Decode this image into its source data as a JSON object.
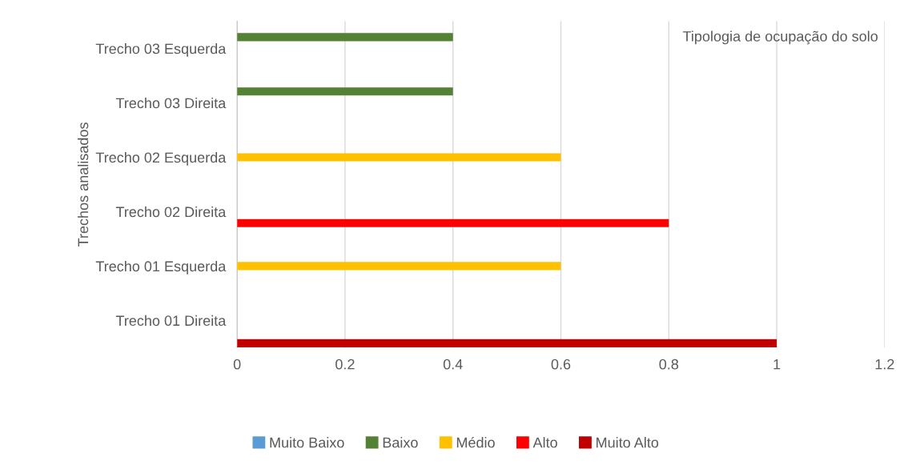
{
  "chart_data": {
    "type": "bar",
    "orientation": "horizontal",
    "title": "Tipologia de ocupação do solo",
    "ylabel": "Trechos analisados",
    "categories": [
      "Trecho 03 Esquerda",
      "Trecho 03 Direita",
      "Trecho 02 Esquerda",
      "Trecho 02 Direita",
      "Trecho 01 Esquerda",
      "Trecho 01 Direita"
    ],
    "series": [
      {
        "name": "Muito Baixo",
        "color": "#5b9bd5",
        "values": [
          null,
          null,
          null,
          null,
          null,
          null
        ]
      },
      {
        "name": "Baixo",
        "color": "#548235",
        "values": [
          0.4,
          0.4,
          null,
          null,
          null,
          null
        ]
      },
      {
        "name": "Médio",
        "color": "#ffc000",
        "values": [
          null,
          null,
          0.6,
          null,
          0.6,
          null
        ]
      },
      {
        "name": "Alto",
        "color": "#ff0000",
        "values": [
          null,
          null,
          null,
          0.8,
          null,
          null
        ]
      },
      {
        "name": "Muito Alto",
        "color": "#c00000",
        "values": [
          null,
          null,
          null,
          null,
          null,
          1
        ]
      }
    ],
    "xlim": [
      0,
      1.2
    ],
    "xticks": [
      0,
      0.2,
      0.4,
      0.6,
      0.8,
      1,
      1.2
    ],
    "grid": "x",
    "legend": "bottom"
  }
}
